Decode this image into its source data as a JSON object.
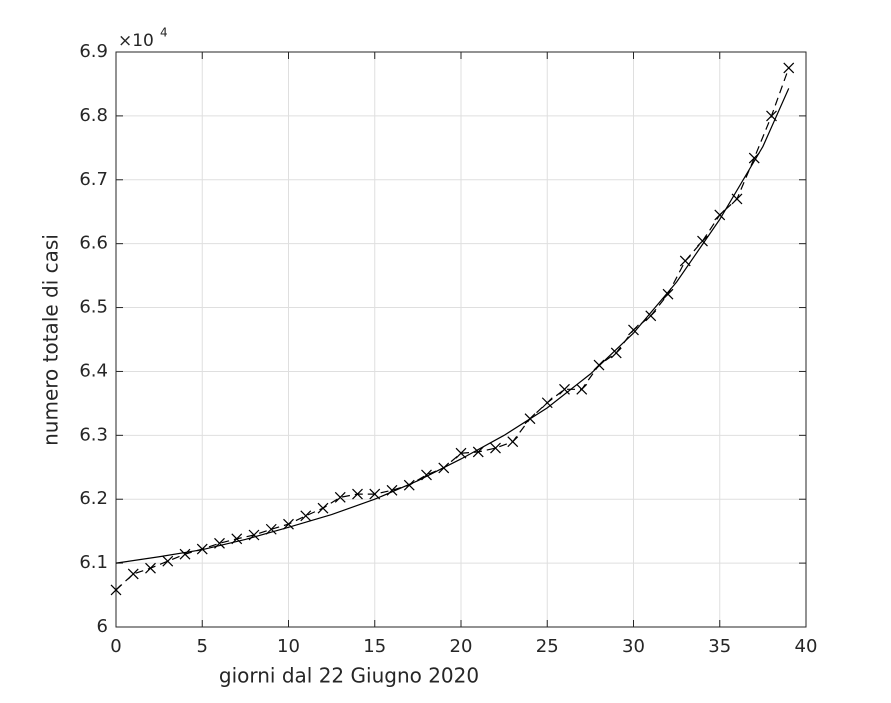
{
  "chart_data": {
    "type": "line",
    "x_label": "giorni dal 22 Giugno 2020",
    "y_label": "numero totale di casi",
    "y_multiplier": "×10",
    "y_multiplier_exponent": "4",
    "xlim": [
      0,
      40
    ],
    "xticks": [
      0,
      5,
      10,
      15,
      20,
      25,
      30,
      35,
      40
    ],
    "ylim": [
      6,
      6.9
    ],
    "yticks": [
      6,
      6.1,
      6.2,
      6.3,
      6.4,
      6.5,
      6.6,
      6.7,
      6.8,
      6.9
    ],
    "grid": true,
    "series": [
      {
        "color": "#000000",
        "marker": "x",
        "linestyle": "dashed",
        "x": [
          0,
          1,
          2,
          3,
          4,
          5,
          6,
          7,
          8,
          9,
          10,
          11,
          12,
          13,
          14,
          15,
          16,
          17,
          18,
          19,
          20,
          21,
          22,
          23,
          24,
          25,
          26,
          27,
          28,
          29,
          30,
          31,
          32,
          33,
          34,
          35,
          36,
          37,
          38,
          39
        ],
        "values": [
          6.058,
          6.083,
          6.092,
          6.103,
          6.114,
          6.122,
          6.131,
          6.138,
          6.144,
          6.153,
          6.161,
          6.174,
          6.186,
          6.203,
          6.208,
          6.208,
          6.214,
          6.222,
          6.238,
          6.249,
          6.272,
          6.274,
          6.28,
          6.29,
          6.326,
          6.351,
          6.372,
          6.372,
          6.41,
          6.429,
          6.465,
          6.487,
          6.521,
          6.573,
          6.604,
          6.645,
          6.67,
          6.734,
          6.8,
          6.875
        ]
      },
      {
        "color": "#000000",
        "marker": "none",
        "linestyle": "solid",
        "x": [
          0,
          2.5,
          5,
          7.5,
          10,
          12.5,
          15,
          17.5,
          20,
          22.5,
          25,
          27.5,
          30,
          32.5,
          35,
          37.5,
          39
        ],
        "values": [
          6.1,
          6.11,
          6.121,
          6.137,
          6.156,
          6.176,
          6.2,
          6.229,
          6.263,
          6.3,
          6.343,
          6.396,
          6.46,
          6.54,
          6.638,
          6.752,
          6.843
        ]
      }
    ]
  }
}
